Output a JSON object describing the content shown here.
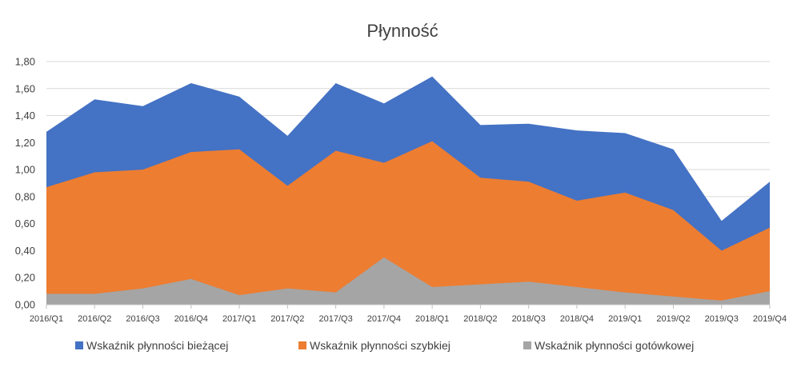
{
  "chart_data": {
    "type": "area",
    "title": "Płynność",
    "categories": [
      "2016/Q1",
      "2016/Q2",
      "2016/Q3",
      "2016/Q4",
      "2017/Q1",
      "2017/Q2",
      "2017/Q3",
      "2017/Q4",
      "2018/Q1",
      "2018/Q2",
      "2018/Q3",
      "2018/Q4",
      "2019/Q1",
      "2019/Q2",
      "2019/Q3",
      "2019/Q4"
    ],
    "ylim": [
      0,
      1.8
    ],
    "yticks": [
      "0,00",
      "0,20",
      "0,40",
      "0,60",
      "0,80",
      "1,00",
      "1,20",
      "1,40",
      "1,60",
      "1,80"
    ],
    "grid": true,
    "legend_position": "bottom",
    "series": [
      {
        "name": "Wskaźnik płynności bieżącej",
        "color": "#4472c4",
        "values": [
          1.28,
          1.52,
          1.47,
          1.64,
          1.54,
          1.25,
          1.64,
          1.49,
          1.69,
          1.33,
          1.34,
          1.29,
          1.27,
          1.15,
          0.62,
          0.91
        ]
      },
      {
        "name": "Wskaźnik płynności szybkiej",
        "color": "#ed7d31",
        "values": [
          0.87,
          0.98,
          1.0,
          1.13,
          1.15,
          0.88,
          1.14,
          1.05,
          1.21,
          0.94,
          0.91,
          0.77,
          0.83,
          0.7,
          0.4,
          0.57
        ]
      },
      {
        "name": "Wskaźnik płynności gotówkowej",
        "color": "#a5a5a5",
        "values": [
          0.08,
          0.08,
          0.12,
          0.19,
          0.07,
          0.12,
          0.09,
          0.35,
          0.13,
          0.15,
          0.17,
          0.13,
          0.09,
          0.06,
          0.03,
          0.1
        ]
      }
    ]
  }
}
